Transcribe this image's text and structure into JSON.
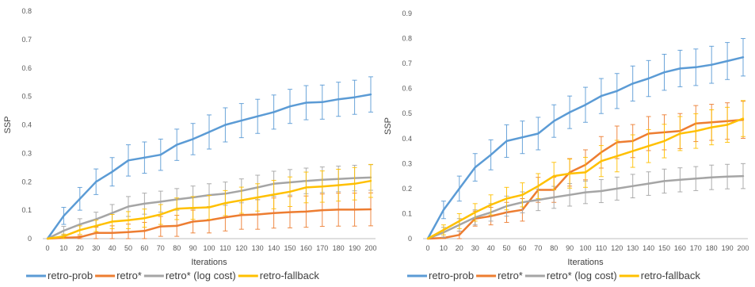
{
  "colors": {
    "retro_prob": "#5B9BD5",
    "retro_star": "#ED7D31",
    "retro_log": "#A5A5A5",
    "retro_fallback": "#FFC000",
    "axis": "#bfbfbf",
    "text": "#595959"
  },
  "chart_data": [
    {
      "type": "line",
      "xlabel": "Iterations",
      "ylabel": "SSP",
      "ylim": [
        0,
        0.8
      ],
      "yticks": [
        "0",
        "0.1",
        "0.2",
        "0.3",
        "0.4",
        "0.5",
        "0.6",
        "0.7",
        "0.8"
      ],
      "x": [
        0,
        10,
        20,
        30,
        40,
        50,
        60,
        70,
        80,
        90,
        100,
        110,
        120,
        130,
        140,
        150,
        160,
        170,
        180,
        190,
        200
      ],
      "legend_position": "bottom",
      "grid": false,
      "error_bars": true,
      "series": [
        {
          "name": "retro-prob",
          "color_key": "retro_prob",
          "values": [
            0,
            0.08,
            0.14,
            0.2,
            0.235,
            0.275,
            0.285,
            0.295,
            0.33,
            0.35,
            0.375,
            0.4,
            0.415,
            0.43,
            0.445,
            0.465,
            0.478,
            0.48,
            0.49,
            0.497,
            0.507
          ],
          "errors": [
            0,
            0.03,
            0.04,
            0.045,
            0.05,
            0.055,
            0.055,
            0.055,
            0.055,
            0.055,
            0.06,
            0.06,
            0.06,
            0.06,
            0.06,
            0.06,
            0.06,
            0.06,
            0.06,
            0.06,
            0.062
          ]
        },
        {
          "name": "retro*",
          "color_key": "retro_star",
          "values": [
            0,
            0.003,
            0.005,
            0.02,
            0.02,
            0.023,
            0.027,
            0.043,
            0.045,
            0.06,
            0.065,
            0.075,
            0.083,
            0.085,
            0.09,
            0.093,
            0.095,
            0.1,
            0.102,
            0.102,
            0.103
          ],
          "errors": [
            0,
            0.003,
            0.005,
            0.02,
            0.025,
            0.028,
            0.03,
            0.035,
            0.037,
            0.04,
            0.045,
            0.048,
            0.05,
            0.052,
            0.053,
            0.055,
            0.055,
            0.057,
            0.058,
            0.058,
            0.058
          ]
        },
        {
          "name": "retro* (log cost)",
          "color_key": "retro_log",
          "values": [
            0,
            0.028,
            0.05,
            0.068,
            0.09,
            0.113,
            0.123,
            0.13,
            0.138,
            0.145,
            0.153,
            0.158,
            0.168,
            0.18,
            0.193,
            0.198,
            0.203,
            0.207,
            0.21,
            0.213,
            0.215
          ],
          "errors": [
            0,
            0.015,
            0.02,
            0.025,
            0.03,
            0.035,
            0.037,
            0.037,
            0.038,
            0.04,
            0.04,
            0.041,
            0.042,
            0.043,
            0.044,
            0.045,
            0.045,
            0.045,
            0.045,
            0.045,
            0.045
          ]
        },
        {
          "name": "retro-fallback",
          "color_key": "retro_fallback",
          "values": [
            0,
            0.008,
            0.03,
            0.045,
            0.06,
            0.065,
            0.072,
            0.085,
            0.105,
            0.108,
            0.11,
            0.125,
            0.135,
            0.145,
            0.155,
            0.165,
            0.18,
            0.183,
            0.188,
            0.193,
            0.203
          ],
          "errors": [
            0,
            0.008,
            0.015,
            0.02,
            0.025,
            0.03,
            0.032,
            0.035,
            0.038,
            0.04,
            0.042,
            0.044,
            0.046,
            0.048,
            0.05,
            0.052,
            0.054,
            0.055,
            0.056,
            0.057,
            0.058
          ]
        }
      ]
    },
    {
      "type": "line",
      "xlabel": "Iterations",
      "ylabel": "SSP",
      "ylim": [
        0,
        0.9
      ],
      "yticks": [
        "0",
        "0.1",
        "0.2",
        "0.3",
        "0.4",
        "0.5",
        "0.6",
        "0.7",
        "0.8",
        "0.9"
      ],
      "x": [
        0,
        10,
        20,
        30,
        40,
        50,
        60,
        70,
        80,
        90,
        100,
        110,
        120,
        130,
        140,
        150,
        160,
        170,
        180,
        190,
        200
      ],
      "legend_position": "bottom",
      "grid": false,
      "error_bars": true,
      "series": [
        {
          "name": "retro-prob",
          "color_key": "retro_prob",
          "values": [
            0,
            0.115,
            0.2,
            0.285,
            0.335,
            0.39,
            0.405,
            0.42,
            0.47,
            0.505,
            0.535,
            0.57,
            0.59,
            0.62,
            0.64,
            0.665,
            0.68,
            0.685,
            0.695,
            0.71,
            0.725
          ],
          "errors": [
            0,
            0.035,
            0.05,
            0.055,
            0.06,
            0.065,
            0.065,
            0.065,
            0.065,
            0.065,
            0.07,
            0.07,
            0.07,
            0.07,
            0.072,
            0.072,
            0.073,
            0.073,
            0.074,
            0.074,
            0.075
          ]
        },
        {
          "name": "retro*",
          "color_key": "retro_star",
          "values": [
            0,
            0.003,
            0.015,
            0.08,
            0.09,
            0.105,
            0.115,
            0.195,
            0.195,
            0.265,
            0.295,
            0.345,
            0.385,
            0.39,
            0.42,
            0.425,
            0.43,
            0.46,
            0.465,
            0.47,
            0.475
          ],
          "errors": [
            0,
            0.003,
            0.015,
            0.03,
            0.035,
            0.04,
            0.045,
            0.05,
            0.05,
            0.055,
            0.06,
            0.063,
            0.065,
            0.066,
            0.068,
            0.07,
            0.07,
            0.072,
            0.072,
            0.073,
            0.074
          ]
        },
        {
          "name": "retro* (log cost)",
          "color_key": "retro_log",
          "values": [
            0,
            0.025,
            0.055,
            0.085,
            0.105,
            0.13,
            0.145,
            0.155,
            0.165,
            0.175,
            0.185,
            0.19,
            0.2,
            0.21,
            0.22,
            0.23,
            0.235,
            0.24,
            0.245,
            0.248,
            0.25
          ],
          "errors": [
            0,
            0.02,
            0.025,
            0.03,
            0.035,
            0.04,
            0.042,
            0.043,
            0.044,
            0.045,
            0.045,
            0.046,
            0.046,
            0.047,
            0.047,
            0.048,
            0.048,
            0.048,
            0.049,
            0.049,
            0.05
          ]
        },
        {
          "name": "retro-fallback",
          "color_key": "retro_fallback",
          "values": [
            0,
            0.035,
            0.07,
            0.105,
            0.135,
            0.16,
            0.175,
            0.21,
            0.25,
            0.26,
            0.265,
            0.31,
            0.33,
            0.35,
            0.37,
            0.39,
            0.42,
            0.43,
            0.445,
            0.455,
            0.48
          ],
          "errors": [
            0,
            0.02,
            0.03,
            0.035,
            0.04,
            0.045,
            0.048,
            0.05,
            0.055,
            0.058,
            0.06,
            0.062,
            0.063,
            0.065,
            0.066,
            0.067,
            0.068,
            0.069,
            0.07,
            0.07,
            0.072
          ]
        }
      ]
    }
  ]
}
